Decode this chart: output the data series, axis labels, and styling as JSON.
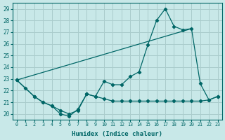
{
  "bg_color": "#c8e8e8",
  "grid_color": "#aacccc",
  "line_color": "#006666",
  "xlabel": "Humidex (Indice chaleur)",
  "xlim": [
    -0.5,
    23.5
  ],
  "ylim": [
    19.5,
    29.5
  ],
  "yticks": [
    20,
    21,
    22,
    23,
    24,
    25,
    26,
    27,
    28,
    29
  ],
  "xticks": [
    0,
    1,
    2,
    3,
    4,
    5,
    6,
    7,
    8,
    9,
    10,
    11,
    12,
    13,
    14,
    15,
    16,
    17,
    18,
    19,
    20,
    21,
    22,
    23
  ],
  "line1_x": [
    0,
    1,
    2,
    3,
    4,
    5,
    6,
    7,
    8,
    9,
    10,
    11,
    12,
    13,
    14,
    15,
    16,
    17,
    18,
    19,
    20,
    21,
    22,
    23
  ],
  "line1_y": [
    22.9,
    22.2,
    21.5,
    21.0,
    20.7,
    20.0,
    19.8,
    20.4,
    21.7,
    21.5,
    22.8,
    22.5,
    22.5,
    23.2,
    23.6,
    25.9,
    28.0,
    29.0,
    27.5,
    27.2,
    27.3,
    22.6,
    21.2,
    21.5
  ],
  "line2_x": [
    0,
    2,
    3,
    4,
    5,
    6,
    7,
    8,
    9,
    10,
    11,
    12,
    13,
    14,
    15,
    16,
    17,
    18,
    19,
    20,
    21,
    22,
    23
  ],
  "line2_y": [
    22.9,
    21.5,
    21.0,
    20.7,
    20.3,
    20.0,
    20.3,
    21.7,
    21.5,
    21.3,
    21.1,
    21.1,
    21.1,
    21.1,
    21.1,
    21.1,
    21.1,
    21.1,
    21.1,
    21.1,
    21.1,
    21.2,
    21.5
  ],
  "line3_x": [
    0,
    20
  ],
  "line3_y": [
    22.9,
    27.3
  ]
}
